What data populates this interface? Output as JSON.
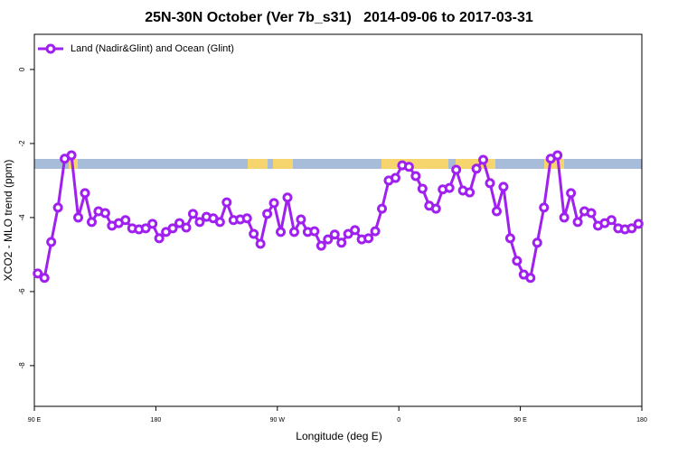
{
  "chart_data": {
    "type": "line",
    "title": "25N-30N October (Ver 7b_s31)   2014-09-06 to 2017-03-31",
    "xlabel": "Longitude (deg E)",
    "ylabel": "XCO2 - MLO trend (ppm)",
    "xlim": [
      90,
      540
    ],
    "xticks": [
      {
        "value": 90,
        "label": "90 E"
      },
      180,
      {
        "value": 270,
        "label": "90 W"
      },
      {
        "value": 360,
        "label": "0"
      },
      {
        "value": 450,
        "label": "90 E"
      },
      {
        "value": 540,
        "label": "180"
      }
    ],
    "ylim": [
      -9.1,
      0.95
    ],
    "yticks": [
      0,
      -2,
      -4,
      -6,
      -8
    ],
    "legend": "top-left",
    "x": [
      92.5,
      97.5,
      102.5,
      107.5,
      112.5,
      117.5,
      122.5,
      127.5,
      132.5,
      137.5,
      142.5,
      147.5,
      152.5,
      157.5,
      162.5,
      167.5,
      172.5,
      177.5,
      182.5,
      187.5,
      192.5,
      197.5,
      202.5,
      207.5,
      212.5,
      217.5,
      222.5,
      227.5,
      232.5,
      237.5,
      242.5,
      247.5,
      252.5,
      257.5,
      262.5,
      267.5,
      272.5,
      277.5,
      282.5,
      287.5,
      292.5,
      297.5,
      302.5,
      307.5,
      312.5,
      317.5,
      322.5,
      327.5,
      332.5,
      337.5,
      342.5,
      347.5,
      352.5,
      357.5,
      362.5,
      367.5,
      372.5,
      377.5,
      382.5,
      387.5,
      392.5,
      397.5,
      402.5,
      407.5,
      412.5,
      417.5,
      422.5,
      427.5,
      432.5,
      437.5,
      442.5,
      447.5,
      452.5,
      457.5,
      462.5,
      467.5,
      472.5,
      477.5,
      482.5,
      487.5,
      492.5,
      497.5,
      502.5,
      507.5,
      512.5,
      517.5,
      522.5,
      527.5,
      532.5,
      537.5
    ],
    "series": [
      {
        "name": "Land (Nadir&Glint) and Ocean (Glint)",
        "color": "#a020f0",
        "values": [
          -5.51,
          -5.63,
          -4.66,
          -3.73,
          -2.41,
          -2.32,
          -4.0,
          -3.34,
          -4.12,
          -3.83,
          -3.88,
          -4.22,
          -4.15,
          -4.07,
          -4.29,
          -4.32,
          -4.29,
          -4.17,
          -4.56,
          -4.39,
          -4.29,
          -4.15,
          -4.27,
          -3.9,
          -4.12,
          -3.98,
          -4.02,
          -4.12,
          -3.59,
          -4.07,
          -4.05,
          -4.02,
          -4.44,
          -4.71,
          -3.9,
          -3.61,
          -4.39,
          -3.46,
          -4.39,
          -4.05,
          -4.39,
          -4.37,
          -4.76,
          -4.59,
          -4.46,
          -4.68,
          -4.44,
          -4.34,
          -4.59,
          -4.56,
          -4.37,
          -3.76,
          -3.0,
          -2.93,
          -2.59,
          -2.63,
          -2.88,
          -3.22,
          -3.68,
          -3.76,
          -3.24,
          -3.2,
          -2.71,
          -3.27,
          -3.32,
          -2.68,
          -2.44,
          -3.07,
          -3.83,
          -3.17,
          -4.56,
          -5.17,
          -5.54,
          -5.63,
          -4.68,
          -3.73,
          -2.41,
          -2.32,
          -4.0,
          -3.34,
          -4.12,
          -3.83,
          -3.88,
          -4.22,
          -4.15,
          -4.07,
          -4.29,
          -4.32,
          -4.29,
          -4.17
        ]
      }
    ]
  }
}
